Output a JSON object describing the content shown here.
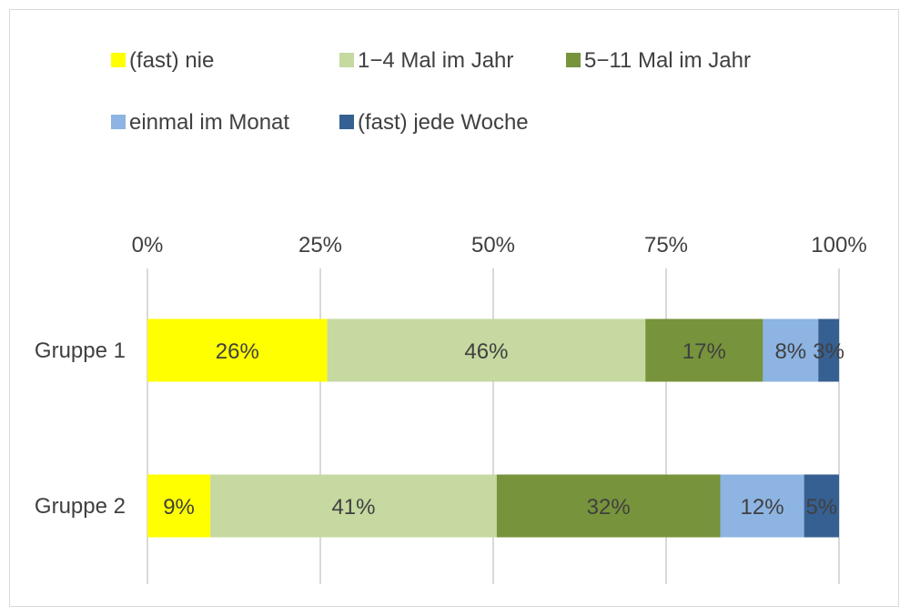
{
  "chart_data": {
    "type": "bar",
    "orientation": "horizontal",
    "stacked": "percent",
    "title": "",
    "xlabel": "",
    "ylabel": "",
    "xlim": [
      0,
      100
    ],
    "x_ticks": [
      "0%",
      "25%",
      "50%",
      "75%",
      "100%"
    ],
    "x_axis_position": "top",
    "grid": "vertical",
    "legend_placement": "top",
    "categories": [
      "Gruppe 1",
      "Gruppe 2"
    ],
    "series": [
      {
        "name": "(fast) nie",
        "color": "#ffff00",
        "values": [
          26,
          9
        ],
        "labels": [
          "26%",
          "9%"
        ]
      },
      {
        "name": "1−4 Mal im Jahr",
        "color": "#c5d9a0",
        "values": [
          46,
          41
        ],
        "labels": [
          "46%",
          "41%"
        ]
      },
      {
        "name": "5−11 Mal im Jahr",
        "color": "#77933c",
        "values": [
          17,
          32
        ],
        "labels": [
          "17%",
          "32%"
        ]
      },
      {
        "name": "einmal im Monat",
        "color": "#8db4e2",
        "values": [
          8,
          12
        ],
        "labels": [
          "8%",
          "12%"
        ]
      },
      {
        "name": "(fast) jede Woche",
        "color": "#366092",
        "values": [
          3,
          5
        ],
        "labels": [
          "3%",
          "5%"
        ]
      }
    ]
  }
}
